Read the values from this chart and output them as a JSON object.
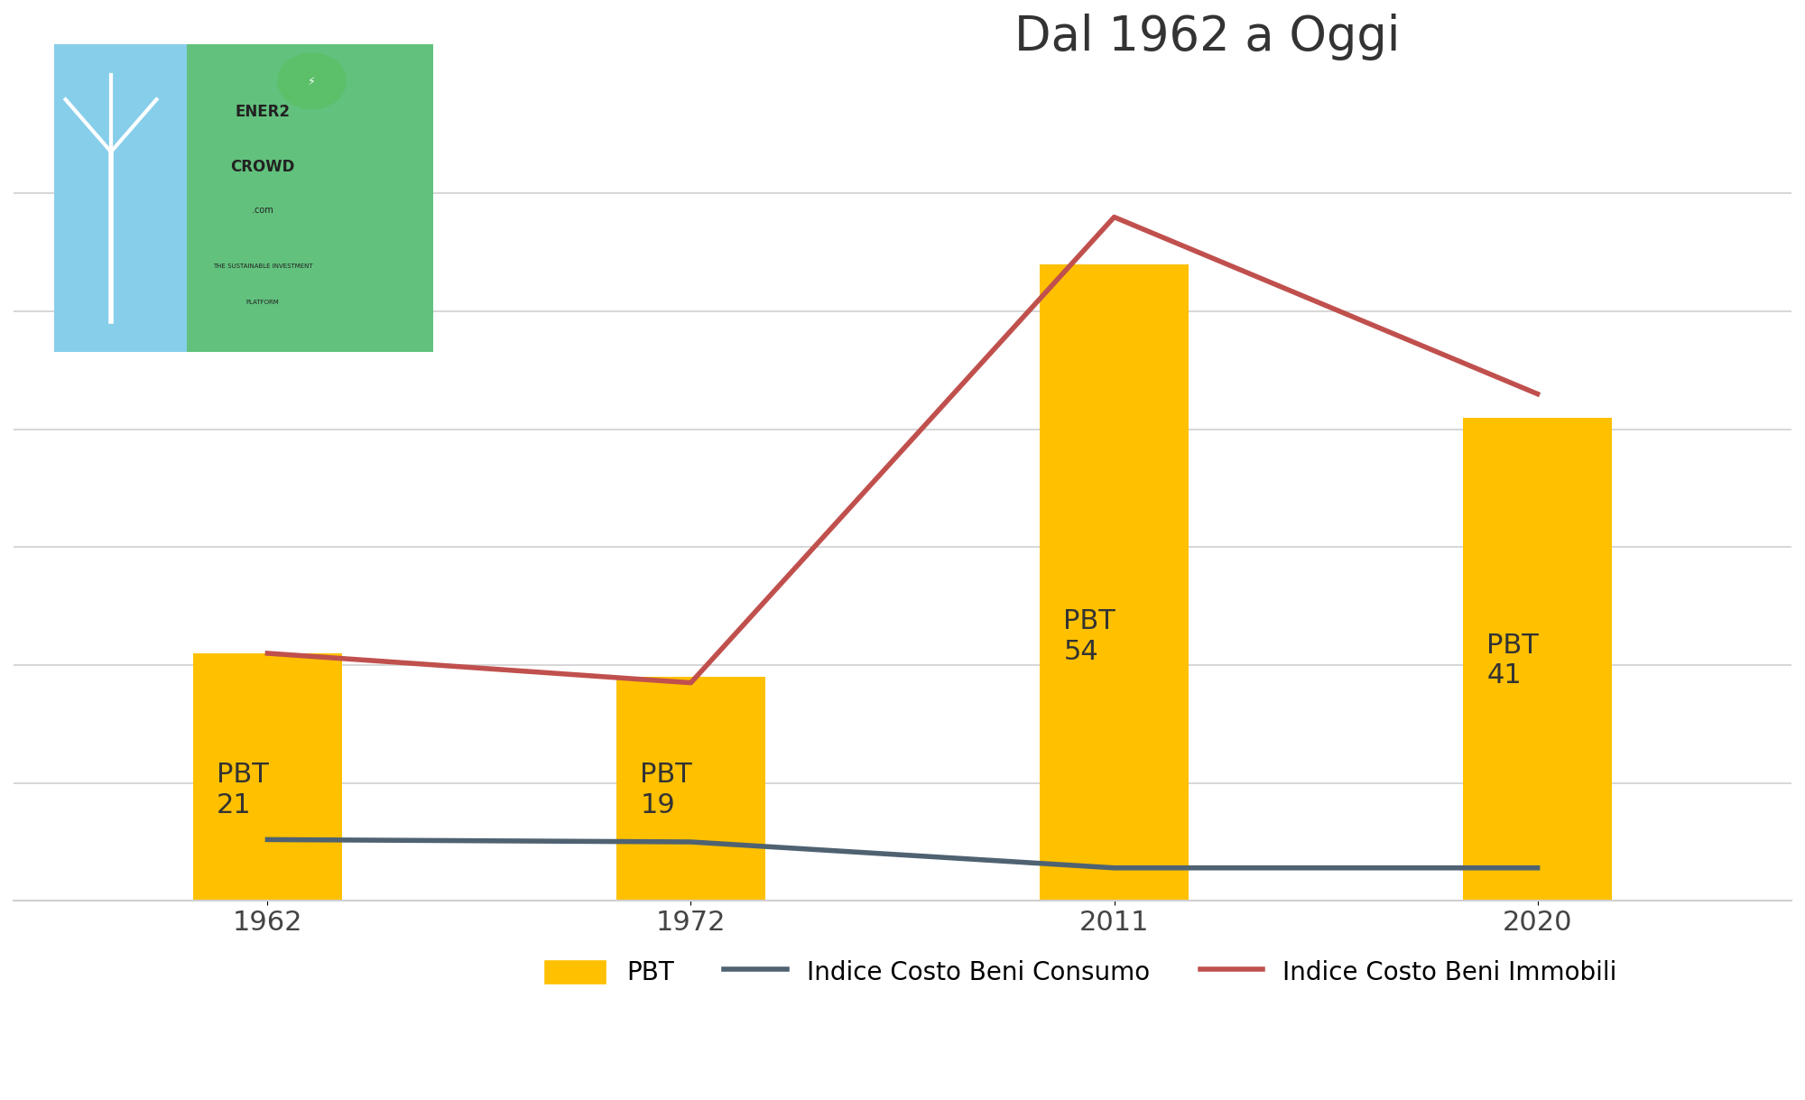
{
  "title": "Dal 1962 a Oggi",
  "categories": [
    "1962",
    "1972",
    "2011",
    "2020"
  ],
  "bar_values": [
    21,
    19,
    54,
    41
  ],
  "bar_color": "#FFC000",
  "bar_labels": [
    "PBT\n21",
    "PBT\n19",
    "PBT\n54",
    "PBT\n41"
  ],
  "consumo_values": [
    5,
    5,
    3,
    3
  ],
  "immobili_values": [
    20,
    18,
    56,
    42
  ],
  "line_consumo_color": "#4F6272",
  "line_immobili_color": "#C0504D",
  "background_color": "#FFFFFF",
  "grid_color": "#D0D0D0",
  "title_fontsize": 38,
  "bar_label_fontsize": 22,
  "tick_fontsize": 22,
  "legend_fontsize": 20,
  "ylim": [
    0,
    70
  ],
  "legend_items": [
    "PBT",
    "Indice Costo Beni Consumo",
    "Indice Costo Beni Immobili"
  ]
}
